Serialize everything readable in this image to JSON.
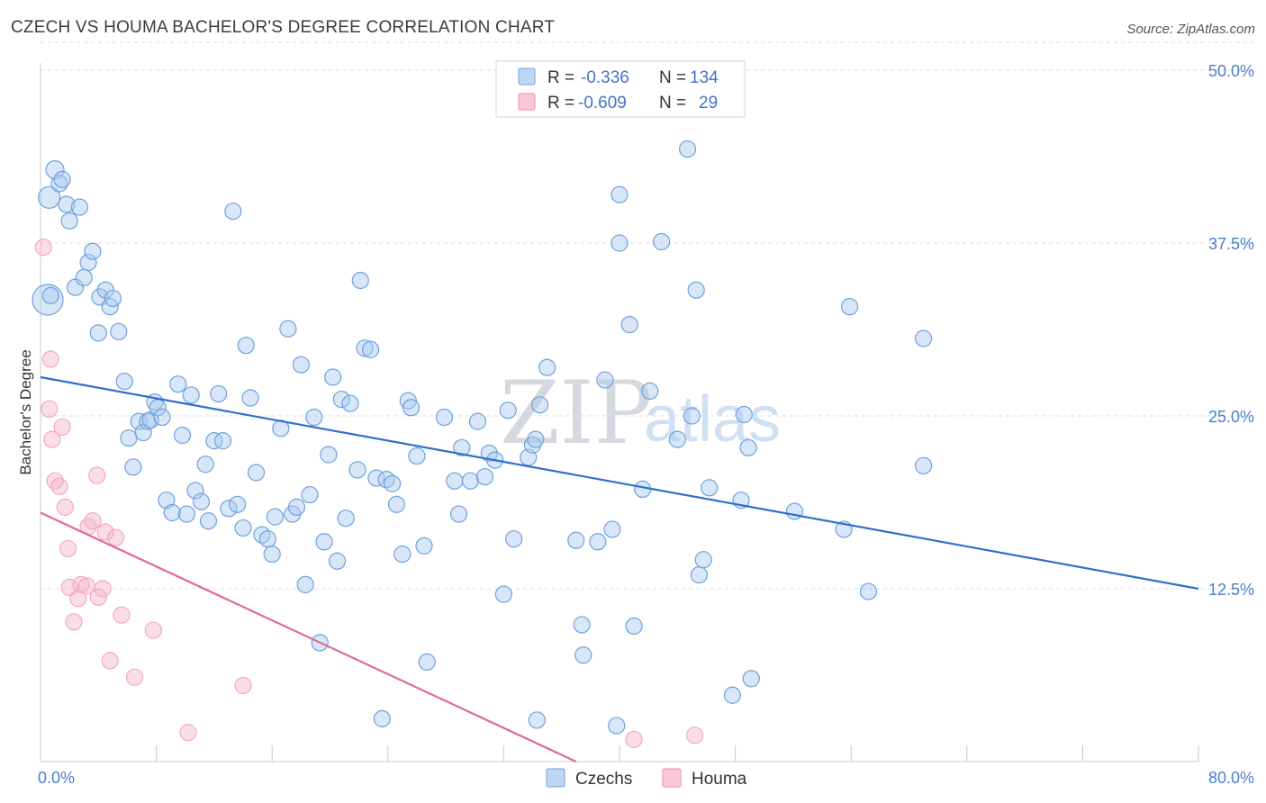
{
  "title": "CZECH VS HOUMA BACHELOR'S DEGREE CORRELATION CHART",
  "source": "Source: ZipAtlas.com",
  "watermark": {
    "zip": "ZIP",
    "atlas": "atlas"
  },
  "legend": {
    "rows": [
      {
        "r_label": "R =",
        "r_value": "-0.336",
        "n_label": "N =",
        "n_value": "134",
        "color": "#a9c9f0"
      },
      {
        "r_label": "R =",
        "r_value": "-0.609",
        "n_label": "N =",
        "n_value": "29",
        "color": "#f5b5c8"
      }
    ]
  },
  "bottom_legend": [
    {
      "label": "Czechs",
      "color": "#a9c9f0"
    },
    {
      "label": "Houma",
      "color": "#f5b5c8"
    }
  ],
  "chart_data": {
    "type": "scatter",
    "title": "CZECH VS HOUMA BACHELOR'S DEGREE CORRELATION CHART",
    "xlabel": "",
    "ylabel": "Bachelor's Degree",
    "xlim": [
      0,
      80
    ],
    "ylim": [
      0,
      50
    ],
    "x_tick_labels": [
      {
        "value": 0,
        "label": "0.0%"
      },
      {
        "value": 80,
        "label": "80.0%"
      }
    ],
    "y_ticks": [
      12.5,
      25.0,
      37.5,
      50.0
    ],
    "y_tick_labels": [
      "12.5%",
      "25.0%",
      "37.5%",
      "50.0%"
    ],
    "grid": "horizontal dashed",
    "legend_position": "top-center",
    "series": [
      {
        "name": "Czechs",
        "color": "#6fa0dc",
        "trend": {
          "x": [
            0,
            80
          ],
          "y": [
            27.8,
            12.5
          ],
          "color": "#2f6fcc"
        },
        "points": [
          [
            0.5,
            33.4
          ],
          [
            0.6,
            40.8
          ],
          [
            1.0,
            42.8
          ],
          [
            1.3,
            41.8
          ],
          [
            1.5,
            42.1
          ],
          [
            1.8,
            40.3
          ],
          [
            2.0,
            39.1
          ],
          [
            2.7,
            40.1
          ],
          [
            2.4,
            34.3
          ],
          [
            3.0,
            35.0
          ],
          [
            3.3,
            36.1
          ],
          [
            3.6,
            36.9
          ],
          [
            4.1,
            33.6
          ],
          [
            4.5,
            34.1
          ],
          [
            4.8,
            32.9
          ],
          [
            5.0,
            33.5
          ],
          [
            4.0,
            31.0
          ],
          [
            5.4,
            31.1
          ],
          [
            5.8,
            27.5
          ],
          [
            6.1,
            23.4
          ],
          [
            6.4,
            21.3
          ],
          [
            6.8,
            24.6
          ],
          [
            7.1,
            23.8
          ],
          [
            7.4,
            24.6
          ],
          [
            7.6,
            24.7
          ],
          [
            7.9,
            26.0
          ],
          [
            8.1,
            25.6
          ],
          [
            8.4,
            24.9
          ],
          [
            8.7,
            18.9
          ],
          [
            9.1,
            18.0
          ],
          [
            9.5,
            27.3
          ],
          [
            9.8,
            23.6
          ],
          [
            10.1,
            17.9
          ],
          [
            10.4,
            26.5
          ],
          [
            10.7,
            19.6
          ],
          [
            11.1,
            18.8
          ],
          [
            11.4,
            21.5
          ],
          [
            11.6,
            17.4
          ],
          [
            12.0,
            23.2
          ],
          [
            12.3,
            26.6
          ],
          [
            12.6,
            23.2
          ],
          [
            13.0,
            18.3
          ],
          [
            13.3,
            39.8
          ],
          [
            13.6,
            18.6
          ],
          [
            14.0,
            16.9
          ],
          [
            14.2,
            30.1
          ],
          [
            14.5,
            26.3
          ],
          [
            14.9,
            20.9
          ],
          [
            15.3,
            16.4
          ],
          [
            15.7,
            16.1
          ],
          [
            16.0,
            15.0
          ],
          [
            16.2,
            17.7
          ],
          [
            16.6,
            24.1
          ],
          [
            17.1,
            31.3
          ],
          [
            17.4,
            17.9
          ],
          [
            17.7,
            18.4
          ],
          [
            18.0,
            28.7
          ],
          [
            18.3,
            12.8
          ],
          [
            18.6,
            19.3
          ],
          [
            18.9,
            24.9
          ],
          [
            19.3,
            8.6
          ],
          [
            19.6,
            15.9
          ],
          [
            19.9,
            22.2
          ],
          [
            20.2,
            27.8
          ],
          [
            20.5,
            14.5
          ],
          [
            20.8,
            26.2
          ],
          [
            21.1,
            17.6
          ],
          [
            21.4,
            25.9
          ],
          [
            21.9,
            21.1
          ],
          [
            22.1,
            34.8
          ],
          [
            22.4,
            29.9
          ],
          [
            22.8,
            29.8
          ],
          [
            23.2,
            20.5
          ],
          [
            23.6,
            3.1
          ],
          [
            23.9,
            20.4
          ],
          [
            24.3,
            20.1
          ],
          [
            24.6,
            18.6
          ],
          [
            25.0,
            15.0
          ],
          [
            25.4,
            26.1
          ],
          [
            25.6,
            25.6
          ],
          [
            26.0,
            22.1
          ],
          [
            26.5,
            15.6
          ],
          [
            26.7,
            7.2
          ],
          [
            27.9,
            24.9
          ],
          [
            28.6,
            20.3
          ],
          [
            28.9,
            17.9
          ],
          [
            29.1,
            22.7
          ],
          [
            29.7,
            20.3
          ],
          [
            30.2,
            24.6
          ],
          [
            30.7,
            20.6
          ],
          [
            31.0,
            22.3
          ],
          [
            31.4,
            21.8
          ],
          [
            32.0,
            12.1
          ],
          [
            32.3,
            25.4
          ],
          [
            32.7,
            16.1
          ],
          [
            33.7,
            22.0
          ],
          [
            34.0,
            22.9
          ],
          [
            34.2,
            23.3
          ],
          [
            34.5,
            25.8
          ],
          [
            35.0,
            28.5
          ],
          [
            34.3,
            3.0
          ],
          [
            37.0,
            16.0
          ],
          [
            37.4,
            9.9
          ],
          [
            37.5,
            7.7
          ],
          [
            38.5,
            15.9
          ],
          [
            39.0,
            27.6
          ],
          [
            39.5,
            16.8
          ],
          [
            39.8,
            2.6
          ],
          [
            40.0,
            37.5
          ],
          [
            40.0,
            41.0
          ],
          [
            40.7,
            31.6
          ],
          [
            41.0,
            9.8
          ],
          [
            41.6,
            19.7
          ],
          [
            42.1,
            26.8
          ],
          [
            42.9,
            37.6
          ],
          [
            44.0,
            23.3
          ],
          [
            44.7,
            44.3
          ],
          [
            45.0,
            25.0
          ],
          [
            45.3,
            34.1
          ],
          [
            45.5,
            13.5
          ],
          [
            45.8,
            14.6
          ],
          [
            46.2,
            19.8
          ],
          [
            47.8,
            4.8
          ],
          [
            48.4,
            18.9
          ],
          [
            48.6,
            25.1
          ],
          [
            48.9,
            22.7
          ],
          [
            49.1,
            6.0
          ],
          [
            52.1,
            18.1
          ],
          [
            55.5,
            16.8
          ],
          [
            55.9,
            32.9
          ],
          [
            57.2,
            12.3
          ],
          [
            61.0,
            30.6
          ],
          [
            61.0,
            21.4
          ],
          [
            0.7,
            33.7
          ]
        ]
      },
      {
        "name": "Houma",
        "color": "#f4a7bd",
        "trend": {
          "x": [
            0,
            37
          ],
          "y": [
            18.0,
            0.0
          ],
          "color": "#e06a94"
        },
        "points": [
          [
            0.2,
            37.2
          ],
          [
            0.6,
            25.5
          ],
          [
            0.7,
            29.1
          ],
          [
            0.8,
            23.3
          ],
          [
            1.0,
            20.3
          ],
          [
            1.3,
            19.9
          ],
          [
            1.5,
            24.2
          ],
          [
            1.7,
            18.4
          ],
          [
            1.9,
            15.4
          ],
          [
            2.0,
            12.6
          ],
          [
            2.3,
            10.1
          ],
          [
            2.6,
            11.8
          ],
          [
            2.8,
            12.8
          ],
          [
            3.2,
            12.7
          ],
          [
            3.3,
            17.0
          ],
          [
            3.6,
            17.4
          ],
          [
            3.9,
            20.7
          ],
          [
            4.0,
            11.9
          ],
          [
            4.3,
            12.5
          ],
          [
            4.5,
            16.6
          ],
          [
            4.8,
            7.3
          ],
          [
            5.2,
            16.2
          ],
          [
            5.6,
            10.6
          ],
          [
            6.5,
            6.1
          ],
          [
            7.8,
            9.5
          ],
          [
            10.2,
            2.1
          ],
          [
            14.0,
            5.5
          ],
          [
            41.0,
            1.6
          ],
          [
            45.2,
            1.9
          ]
        ]
      }
    ]
  }
}
